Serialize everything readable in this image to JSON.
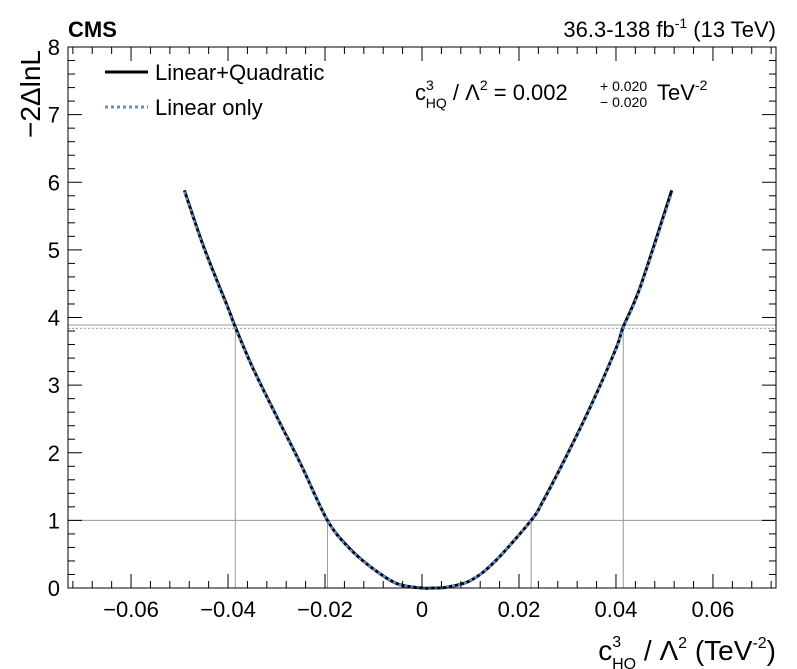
{
  "header": {
    "experiment": "CMS",
    "lumi_prefix": "36.3-138 fb",
    "lumi_exp": "-1",
    "lumi_suffix": " (13 TeV)"
  },
  "annotation": {
    "base": "c",
    "sup": "3",
    "sub": "HQ",
    "lambda": " / Λ",
    "lambda_exp": "2",
    "equals": " = 0.002",
    "err_up": "+ 0.020",
    "err_down": "− 0.020",
    "unit": " TeV",
    "unit_exp": "-2"
  },
  "chart_data": {
    "type": "line",
    "title": "",
    "xlabel": "c_HQ^3 / Λ^2 (TeV^-2)",
    "ylabel": "−2ΔlnL",
    "xlabel_parts": {
      "base": "c",
      "sup": "3",
      "sub": "HQ",
      "mid": " / Λ",
      "mid_exp": "2",
      "unit_open": " (TeV",
      "unit_exp": "-2",
      "unit_close": ")"
    },
    "xlim": [
      -0.073,
      0.073
    ],
    "ylim": [
      0,
      8
    ],
    "x_ticks": [
      -0.06,
      -0.04,
      -0.02,
      0,
      0.02,
      0.04,
      0.06
    ],
    "x_tick_labels": [
      "−0.06",
      "−0.04",
      "−0.02",
      "0",
      "0.02",
      "0.04",
      "0.06"
    ],
    "y_ticks": [
      0,
      1,
      2,
      3,
      4,
      5,
      6,
      7,
      8
    ],
    "y_tick_labels": [
      "0",
      "1",
      "2",
      "3",
      "4",
      "5",
      "6",
      "7",
      "8"
    ],
    "legend": {
      "placement": "top-left",
      "entries": [
        {
          "label": "Linear+Quadratic",
          "color": "#000000",
          "style": "solid"
        },
        {
          "label": "Linear only",
          "color": "#5b8fd6",
          "style": "dotted"
        }
      ]
    },
    "series": [
      {
        "name": "Linear+Quadratic",
        "color": "#000000",
        "style": "solid",
        "x": [
          -0.049,
          -0.045,
          -0.04,
          -0.0385,
          -0.035,
          -0.03,
          -0.025,
          -0.0195,
          -0.015,
          -0.01,
          -0.005,
          0.0,
          0.0025,
          0.005,
          0.01,
          0.015,
          0.0225,
          0.025,
          0.03,
          0.035,
          0.04,
          0.0415,
          0.045,
          0.0515
        ],
        "y": [
          5.88,
          5.04,
          4.14,
          3.86,
          3.27,
          2.54,
          1.83,
          1.0,
          0.59,
          0.28,
          0.06,
          0.0,
          0.0,
          0.01,
          0.11,
          0.39,
          1.0,
          1.29,
          1.98,
          2.72,
          3.54,
          3.86,
          4.45,
          5.88
        ]
      },
      {
        "name": "Linear only",
        "color": "#5b8fd6",
        "style": "dotted",
        "x": [
          -0.049,
          -0.045,
          -0.04,
          -0.0385,
          -0.035,
          -0.03,
          -0.025,
          -0.0195,
          -0.015,
          -0.01,
          -0.005,
          0.0,
          0.0025,
          0.005,
          0.01,
          0.015,
          0.0225,
          0.025,
          0.03,
          0.035,
          0.04,
          0.0415,
          0.045,
          0.0515
        ],
        "y": [
          5.86,
          5.02,
          4.12,
          3.84,
          3.26,
          2.53,
          1.82,
          1.0,
          0.58,
          0.28,
          0.06,
          0.0,
          0.0,
          0.01,
          0.11,
          0.39,
          1.0,
          1.28,
          1.97,
          2.71,
          3.53,
          3.84,
          4.43,
          5.84
        ]
      }
    ],
    "reference_lines": {
      "horizontal": [
        {
          "y": 1.0,
          "color": "#999999",
          "style": "solid"
        },
        {
          "y": 3.84,
          "color": "#999999",
          "style": "dotted"
        },
        {
          "y": 3.89,
          "color": "#999999",
          "style": "solid"
        }
      ],
      "vertical": [
        {
          "x": -0.0385,
          "y_top": 3.86
        },
        {
          "x": -0.0195,
          "y_top": 1.0
        },
        {
          "x": 0.0225,
          "y_top": 1.0
        },
        {
          "x": 0.0415,
          "y_top": 3.86
        }
      ]
    },
    "grid": false
  }
}
